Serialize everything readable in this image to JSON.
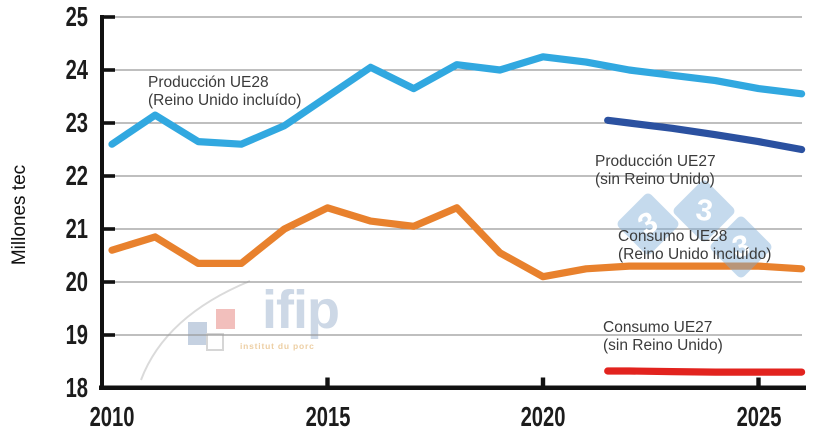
{
  "y_axis": {
    "label": "Millones tec"
  },
  "chart_data": {
    "type": "line",
    "title": "",
    "xlabel": "",
    "ylabel": "Millones tec",
    "ylim": [
      18,
      25
    ],
    "xlim": [
      2010,
      2026
    ],
    "y_ticks": [
      18,
      19,
      20,
      21,
      22,
      23,
      24,
      25
    ],
    "x_ticks": [
      2010,
      2015,
      2020,
      2025
    ],
    "grid": true,
    "legend_position": "inline-annotations",
    "series": [
      {
        "name": "Producción UE28 (Reino Unido incluído)",
        "color": "#31A8E0",
        "x": [
          2010,
          2011,
          2012,
          2013,
          2014,
          2015,
          2016,
          2017,
          2018,
          2019,
          2020,
          2021,
          2022,
          2023,
          2024,
          2025,
          2026
        ],
        "values": [
          22.6,
          23.15,
          22.65,
          22.6,
          22.95,
          23.5,
          24.05,
          23.65,
          24.1,
          24.0,
          24.25,
          24.15,
          24.0,
          23.9,
          23.8,
          23.65,
          23.55
        ]
      },
      {
        "name": "Producción UE27 (sin Reino Unido)",
        "color": "#2B51A0",
        "x": [
          2021.5,
          2022,
          2023,
          2024,
          2025,
          2026
        ],
        "values": [
          23.05,
          23.0,
          22.9,
          22.78,
          22.65,
          22.5
        ]
      },
      {
        "name": "Consumo UE28 (Reino Unido incluído)",
        "color": "#E8812D",
        "x": [
          2010,
          2011,
          2012,
          2013,
          2014,
          2015,
          2016,
          2017,
          2018,
          2019,
          2020,
          2021,
          2022,
          2023,
          2024,
          2025,
          2026
        ],
        "values": [
          20.6,
          20.85,
          20.35,
          20.35,
          21.0,
          21.4,
          21.15,
          21.05,
          21.4,
          20.55,
          20.1,
          20.25,
          20.3,
          20.3,
          20.3,
          20.3,
          20.25
        ]
      },
      {
        "name": "Consumo UE27 (sin Reino Unido)",
        "color": "#E2231E",
        "x": [
          2021.5,
          2022,
          2023,
          2024,
          2025,
          2026
        ],
        "values": [
          18.32,
          18.32,
          18.31,
          18.3,
          18.3,
          18.3
        ]
      }
    ]
  },
  "annotations": [
    {
      "line1": "Producción UE28",
      "line2": "(Reino Unido incluído)"
    },
    {
      "line1": "Producción UE27",
      "line2": "(sin Reino Unido)"
    },
    {
      "line1": "Consumo UE28",
      "line2": "(Reino Unido incluído)"
    },
    {
      "line1": "Consumo UE27",
      "line2": "(sin Reino Unido)"
    }
  ],
  "watermarks": {
    "ifip": {
      "name": "ifip",
      "tagline": "institut du porc"
    },
    "dice": [
      "3",
      "3",
      "3"
    ]
  },
  "palette": {
    "grid": "#999999",
    "axis": "#111111",
    "tick_text": "#1c1c1c",
    "annotation_text": "#3b3b3b",
    "watermark_blue": "rgba(126,172,214,0.45)"
  }
}
